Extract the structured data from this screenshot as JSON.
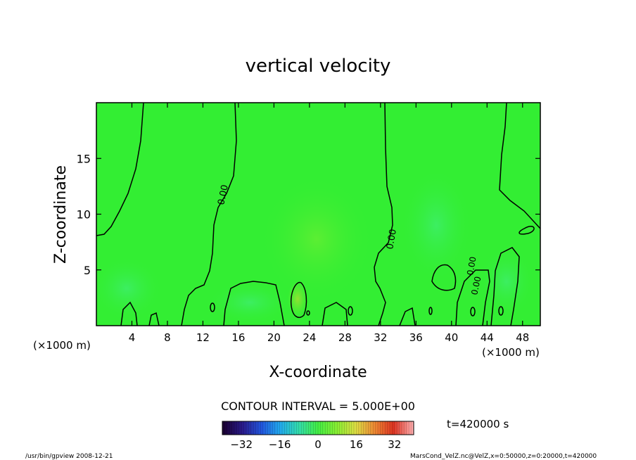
{
  "chart_data": {
    "type": "heatmap",
    "title": "vertical velocity",
    "xlabel": "X-coordinate",
    "ylabel": "Z-coordinate",
    "x_unit_left": "(×1000 m)",
    "x_unit_right": "(×1000 m)",
    "xlim": [
      0,
      50
    ],
    "ylim": [
      0,
      20
    ],
    "x_ticks": [
      4,
      8,
      12,
      16,
      20,
      24,
      28,
      32,
      36,
      40,
      44,
      48
    ],
    "y_ticks": [
      5,
      10,
      15
    ],
    "contour_labels": [
      "0.00",
      "0.00",
      "0.00",
      "0.00"
    ],
    "contour_interval": "CONTOUR INTERVAL = 5.000E+00",
    "time": "t=420000 s",
    "colorbar": {
      "range": [
        -40,
        40
      ],
      "ticks": [
        -32,
        -16,
        0,
        16,
        32
      ],
      "colors": [
        "#1a0033",
        "#2a1a8a",
        "#2255dd",
        "#22aaee",
        "#33ddaa",
        "#44ee44",
        "#88ee33",
        "#dddd44",
        "#ee8833",
        "#dd3322",
        "#ffaaaa"
      ]
    },
    "background_color": "#33ee33",
    "grid": false
  },
  "footer": {
    "left": "/usr/bin/gpview   2008-12-21",
    "right": "MarsCond_VelZ.nc@VelZ,x=0:50000,z=0:20000,t=420000"
  }
}
